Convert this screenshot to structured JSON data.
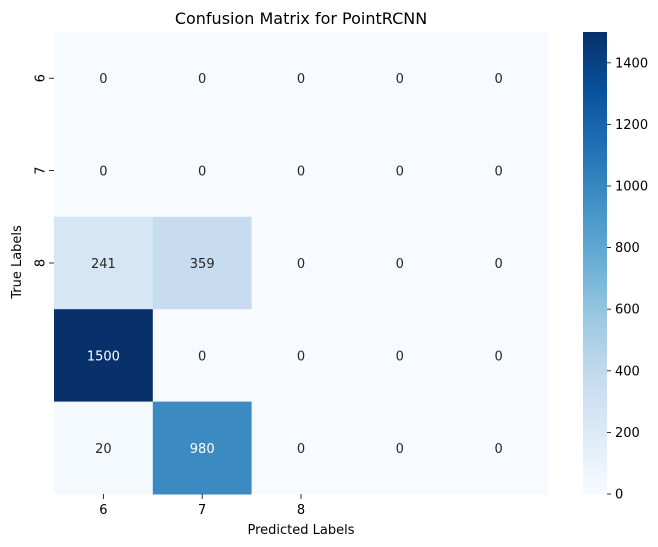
{
  "chart_data": {
    "type": "heatmap",
    "title": "Confusion Matrix for PointRCNN",
    "xlabel": "Predicted Labels",
    "ylabel": "True Labels",
    "x_tick_labels": [
      "6",
      "7",
      "8",
      "",
      ""
    ],
    "y_tick_labels": [
      "6",
      "7",
      "8",
      "",
      ""
    ],
    "matrix": [
      [
        0,
        0,
        0,
        0,
        0
      ],
      [
        0,
        0,
        0,
        0,
        0
      ],
      [
        241,
        359,
        0,
        0,
        0
      ],
      [
        1500,
        0,
        0,
        0,
        0
      ],
      [
        20,
        980,
        0,
        0,
        0
      ]
    ],
    "colormap": "Blues",
    "color_low": "#f7fbff",
    "color_high": "#08306b",
    "vmin": 0,
    "vmax": 1500,
    "colorbar_ticks": [
      0,
      200,
      400,
      600,
      800,
      1000,
      1200,
      1400
    ]
  }
}
